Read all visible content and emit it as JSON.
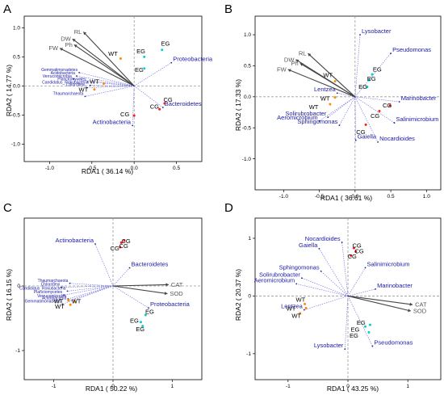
{
  "chart_data": [
    {
      "type": "scatter",
      "panel_label": "A",
      "xlabel": "RDA1 ( 36.14 %)",
      "ylabel": "RDA2 ( 14.77 %)",
      "xlim": [
        -1.3,
        0.8
      ],
      "ylim": [
        -1.3,
        1.2
      ],
      "xticks": [
        -1.0,
        -0.5,
        0.0,
        0.5
      ],
      "yticks": [
        -1.0,
        -0.5,
        0.0,
        0.5,
        1.0
      ],
      "tick_labels_x": [
        "-1.0",
        "-0.5",
        "0.0",
        "0.5"
      ],
      "tick_labels_y": [
        "-1.0",
        "-0.5",
        "0.0",
        "0.5",
        "1.0"
      ],
      "env_vectors": [
        {
          "name": "RL",
          "x": -0.6,
          "y": 0.93
        },
        {
          "name": "DW",
          "x": -0.73,
          "y": 0.81
        },
        {
          "name": "Ph",
          "x": -0.71,
          "y": 0.71
        },
        {
          "name": "FW",
          "x": -0.88,
          "y": 0.65
        }
      ],
      "taxa": [
        {
          "name": "Proteobacteria",
          "x": 0.44,
          "y": 0.4,
          "size": "large"
        },
        {
          "name": "Bacteroidetes",
          "x": 0.34,
          "y": -0.37,
          "size": "large"
        },
        {
          "name": "Actinobacteria",
          "x": -0.02,
          "y": -0.68,
          "size": "large"
        },
        {
          "name": "Gemmatimonadetes",
          "x": -0.65,
          "y": 0.23,
          "size": "small"
        },
        {
          "name": "Acidobacteria",
          "x": -0.68,
          "y": 0.17,
          "size": "small"
        },
        {
          "name": "Verrucomicrobia",
          "x": -0.72,
          "y": 0.12,
          "size": "small"
        },
        {
          "name": "Planctomycetes",
          "x": -0.55,
          "y": 0.07,
          "size": "small"
        },
        {
          "name": "Candidatus_Rokubacteria",
          "x": -0.52,
          "y": 0.01,
          "size": "small"
        },
        {
          "name": "Chloroflexi",
          "x": -0.56,
          "y": -0.03,
          "size": "small"
        },
        {
          "name": "Thaumarchaeota",
          "x": -0.58,
          "y": -0.18,
          "size": "small"
        }
      ],
      "samples": [
        {
          "group": "WT",
          "color": "#ff8c00",
          "points": [
            [
              -0.16,
              0.47
            ],
            [
              -0.36,
              0.04
            ],
            [
              -0.47,
              -0.06
            ]
          ],
          "labels": [
            {
              "text": "WT",
              "x": -0.25,
              "y": 0.52
            },
            {
              "text": "WT",
              "x": -0.47,
              "y": 0.04
            },
            {
              "text": "WT",
              "x": -0.6,
              "y": -0.1
            }
          ]
        },
        {
          "group": "EG",
          "color": "#00d0d0",
          "points": [
            [
              0.12,
              0.5
            ],
            [
              0.33,
              0.62
            ],
            [
              0.12,
              0.3
            ]
          ],
          "labels": [
            {
              "text": "EG",
              "x": 0.08,
              "y": 0.56
            },
            {
              "text": "EG",
              "x": 0.37,
              "y": 0.69
            },
            {
              "text": "EG",
              "x": 0.06,
              "y": 0.24
            }
          ]
        },
        {
          "group": "CG",
          "color": "#ff1a1a",
          "points": [
            [
              0.36,
              -0.3
            ],
            [
              0.3,
              -0.4
            ],
            [
              0.0,
              -0.51
            ]
          ],
          "labels": [
            {
              "text": "CG",
              "x": 0.4,
              "y": -0.27
            },
            {
              "text": "CG",
              "x": 0.24,
              "y": -0.39
            },
            {
              "text": "CG",
              "x": -0.11,
              "y": -0.52
            }
          ]
        }
      ]
    },
    {
      "type": "scatter",
      "panel_label": "B",
      "xlabel": "RDA1 ( 36.61 %)",
      "ylabel": "RDA2 ( 17.33 %)",
      "xlim": [
        -1.4,
        1.2
      ],
      "ylim": [
        -1.5,
        1.3
      ],
      "xticks": [
        -1.0,
        -0.5,
        0.0,
        0.5,
        1.0
      ],
      "yticks": [
        -1.0,
        -0.5,
        0.0,
        0.5,
        1.0
      ],
      "tick_labels_x": [
        "-1.0",
        "-0.5",
        "0.0",
        "0.5",
        "1.0"
      ],
      "tick_labels_y": [
        "-1.0",
        "-0.5",
        "0.0",
        "0.5",
        "1.0"
      ],
      "env_vectors": [
        {
          "name": "RL",
          "x": -0.66,
          "y": 0.7
        },
        {
          "name": "DW",
          "x": -0.83,
          "y": 0.6
        },
        {
          "name": "Ph",
          "x": -0.77,
          "y": 0.54
        },
        {
          "name": "FW",
          "x": -0.94,
          "y": 0.44
        }
      ],
      "taxa": [
        {
          "name": "Lysobacter",
          "x": 0.07,
          "y": 1.0,
          "size": "large"
        },
        {
          "name": "Pseudomonas",
          "x": 0.5,
          "y": 0.7,
          "size": "large"
        },
        {
          "name": "Lentzea",
          "x": -0.25,
          "y": 0.06,
          "size": "large"
        },
        {
          "name": "Marinobacter",
          "x": 0.62,
          "y": -0.08,
          "size": "large"
        },
        {
          "name": "Solirubrobacter",
          "x": -0.38,
          "y": -0.33,
          "size": "large"
        },
        {
          "name": "Aeromicrobium",
          "x": -0.5,
          "y": -0.39,
          "size": "large"
        },
        {
          "name": "Sphingomonas",
          "x": -0.22,
          "y": -0.46,
          "size": "large"
        },
        {
          "name": "Salinimicrobium",
          "x": 0.55,
          "y": -0.42,
          "size": "large"
        },
        {
          "name": "Gaiella",
          "x": 0.01,
          "y": -0.7,
          "size": "large"
        },
        {
          "name": "Nocardioides",
          "x": 0.32,
          "y": -0.73,
          "size": "large"
        }
      ],
      "samples": [
        {
          "group": "WT",
          "color": "#ff8c00",
          "points": [
            [
              -0.28,
              0.25
            ],
            [
              -0.35,
              -0.12
            ],
            [
              -0.28,
              -0.01
            ]
          ],
          "labels": [
            {
              "text": "WT",
              "x": -0.38,
              "y": 0.32
            },
            {
              "text": "WT",
              "x": -0.58,
              "y": -0.2
            },
            {
              "text": "WT",
              "x": -0.42,
              "y": -0.06
            }
          ]
        },
        {
          "group": "EG",
          "color": "#00d0d0",
          "points": [
            [
              0.24,
              0.36
            ],
            [
              0.2,
              0.27
            ],
            [
              0.17,
              0.16
            ]
          ],
          "labels": [
            {
              "text": "EG",
              "x": 0.31,
              "y": 0.41
            },
            {
              "text": "EG",
              "x": 0.23,
              "y": 0.26
            },
            {
              "text": "EG",
              "x": 0.11,
              "y": 0.13
            }
          ]
        },
        {
          "group": "CG",
          "color": "#ff1a1a",
          "points": [
            [
              0.49,
              -0.14
            ],
            [
              0.34,
              -0.23
            ],
            [
              0.15,
              -0.45
            ]
          ],
          "labels": [
            {
              "text": "CG",
              "x": 0.45,
              "y": -0.17
            },
            {
              "text": "CG",
              "x": 0.28,
              "y": -0.34
            },
            {
              "text": "CG",
              "x": 0.08,
              "y": -0.6
            }
          ]
        }
      ]
    },
    {
      "type": "scatter",
      "panel_label": "C",
      "xlabel": "RDA1 ( 50.22 %)",
      "ylabel": "RDA2 ( 16.15 %)",
      "xlim": [
        -1.5,
        1.5
      ],
      "ylim": [
        -1.45,
        1.05
      ],
      "xticks": [
        -1,
        0,
        1
      ],
      "yticks": [
        -1,
        0
      ],
      "tick_labels_x": [
        "-1",
        "0",
        "1"
      ],
      "tick_labels_y": [
        "-1",
        "0"
      ],
      "env_vectors": [
        {
          "name": "CAT",
          "x": 0.94,
          "y": 0.02
        },
        {
          "name": "SOD",
          "x": 0.92,
          "y": -0.12
        }
      ],
      "taxa": [
        {
          "name": "Actinobacteria",
          "x": -0.3,
          "y": 0.65,
          "size": "large"
        },
        {
          "name": "Bacteroidetes",
          "x": 0.28,
          "y": 0.28,
          "size": "large"
        },
        {
          "name": "Proteobacteria",
          "x": 0.6,
          "y": -0.34,
          "size": "large"
        },
        {
          "name": "Thaumarchaeota",
          "x": -0.73,
          "y": 0.04,
          "size": "small"
        },
        {
          "name": "Chloroflexi",
          "x": -0.87,
          "y": -0.02,
          "size": "small"
        },
        {
          "name": "Candidatus_Rokubacteria",
          "x": -0.77,
          "y": -0.08,
          "size": "small"
        },
        {
          "name": "Planctomycetes",
          "x": -0.83,
          "y": -0.14,
          "size": "small"
        },
        {
          "name": "Verrucomicrobia",
          "x": -0.76,
          "y": -0.2,
          "size": "small"
        },
        {
          "name": "Acidobacteria",
          "x": -0.76,
          "y": -0.23,
          "size": "small"
        },
        {
          "name": "Gemmatimonadetes",
          "x": -0.85,
          "y": -0.28,
          "size": "small"
        }
      ],
      "samples": [
        {
          "group": "WT",
          "color": "#ff8c00",
          "points": [
            [
              -0.65,
              -0.24
            ],
            [
              -0.75,
              -0.22
            ],
            [
              -0.72,
              -0.29
            ]
          ],
          "labels": [
            {
              "text": "WT",
              "x": -0.62,
              "y": -0.27
            },
            {
              "text": "WT",
              "x": -0.92,
              "y": -0.27
            },
            {
              "text": "WT",
              "x": -0.9,
              "y": -0.35
            }
          ]
        },
        {
          "group": "EG",
          "color": "#00d0d0",
          "points": [
            [
              0.55,
              -0.45
            ],
            [
              0.47,
              -0.56
            ],
            [
              0.5,
              -0.62
            ]
          ],
          "labels": [
            {
              "text": "EG",
              "x": 0.62,
              "y": -0.43
            },
            {
              "text": "EG",
              "x": 0.36,
              "y": -0.57
            },
            {
              "text": "EG",
              "x": 0.46,
              "y": -0.7
            }
          ]
        },
        {
          "group": "CG",
          "color": "#ff1a1a",
          "points": [
            [
              0.19,
              0.7
            ],
            [
              0.14,
              0.67
            ],
            [
              0.12,
              0.6
            ]
          ],
          "labels": [
            {
              "text": "CG",
              "x": 0.22,
              "y": 0.66
            },
            {
              "text": "CG",
              "x": 0.18,
              "y": 0.59
            },
            {
              "text": "CG",
              "x": 0.03,
              "y": 0.55
            }
          ]
        }
      ]
    },
    {
      "type": "scatter",
      "panel_label": "D",
      "xlabel": "RDA1 ( 43.25 %)",
      "ylabel": "RDA2 ( 20.37 %)",
      "xlim": [
        -1.55,
        1.55
      ],
      "ylim": [
        -1.45,
        1.35
      ],
      "xticks": [
        -1,
        0,
        1
      ],
      "yticks": [
        -1,
        0,
        1
      ],
      "tick_labels_x": [
        "-1",
        "0",
        "1"
      ],
      "tick_labels_y": [
        "-1",
        "0",
        "1"
      ],
      "env_vectors": [
        {
          "name": "CAT",
          "x": 1.08,
          "y": -0.15
        },
        {
          "name": "SOD",
          "x": 1.05,
          "y": -0.26
        }
      ],
      "taxa": [
        {
          "name": "Nocardioides",
          "x": -0.1,
          "y": 0.93,
          "size": "large"
        },
        {
          "name": "Gaiella",
          "x": -0.48,
          "y": 0.82,
          "size": "large"
        },
        {
          "name": "Sphingomonas",
          "x": -0.45,
          "y": 0.43,
          "size": "large"
        },
        {
          "name": "Salinimicrobium",
          "x": 0.29,
          "y": 0.49,
          "size": "large"
        },
        {
          "name": "Solirubrobacter",
          "x": -0.77,
          "y": 0.31,
          "size": "large"
        },
        {
          "name": "Aeromicrobium",
          "x": -0.86,
          "y": 0.21,
          "size": "large"
        },
        {
          "name": "Marinobacter",
          "x": 0.46,
          "y": 0.12,
          "size": "large"
        },
        {
          "name": "Lentzea",
          "x": -0.73,
          "y": -0.24,
          "size": "large"
        },
        {
          "name": "Pseudomonas",
          "x": 0.41,
          "y": -0.87,
          "size": "large"
        },
        {
          "name": "Lysobacter",
          "x": -0.05,
          "y": -0.92,
          "size": "large"
        }
      ],
      "samples": [
        {
          "group": "WT",
          "color": "#ff8c00",
          "points": [
            [
              -0.72,
              -0.14
            ],
            [
              -0.7,
              -0.21
            ],
            [
              -0.8,
              -0.3
            ]
          ],
          "labels": [
            {
              "text": "WT",
              "x": -0.79,
              "y": -0.1
            },
            {
              "text": "WT",
              "x": -0.95,
              "y": -0.25
            },
            {
              "text": "WT",
              "x": -0.86,
              "y": -0.38
            }
          ]
        },
        {
          "group": "EG",
          "color": "#00d0d0",
          "points": [
            [
              0.29,
              -0.53
            ],
            [
              0.37,
              -0.5
            ],
            [
              0.35,
              -0.63
            ]
          ],
          "labels": [
            {
              "text": "EG",
              "x": 0.22,
              "y": -0.5
            },
            {
              "text": "EG",
              "x": 0.12,
              "y": -0.62
            },
            {
              "text": "EG",
              "x": 0.1,
              "y": -0.72
            }
          ]
        },
        {
          "group": "CG",
          "color": "#ff1a1a",
          "points": [
            [
              0.1,
              0.83
            ],
            [
              0.13,
              0.77
            ],
            [
              0.05,
              0.7
            ]
          ],
          "labels": [
            {
              "text": "CG",
              "x": 0.15,
              "y": 0.84
            },
            {
              "text": "CG",
              "x": 0.19,
              "y": 0.74
            },
            {
              "text": "CG",
              "x": 0.07,
              "y": 0.65
            }
          ]
        }
      ]
    }
  ]
}
